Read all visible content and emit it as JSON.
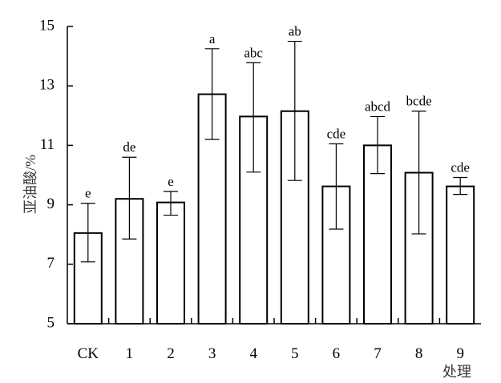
{
  "chart_data": {
    "type": "bar",
    "categories": [
      "CK",
      "1",
      "2",
      "3",
      "4",
      "5",
      "6",
      "7",
      "8",
      "9"
    ],
    "values": [
      8.05,
      9.2,
      9.08,
      12.72,
      11.97,
      12.15,
      9.62,
      11.0,
      10.08,
      9.62
    ],
    "error_bars": [
      {
        "low": 7.08,
        "high": 9.05
      },
      {
        "low": 7.85,
        "high": 10.6
      },
      {
        "low": 8.65,
        "high": 9.45
      },
      {
        "low": 11.2,
        "high": 14.25
      },
      {
        "low": 10.1,
        "high": 13.78
      },
      {
        "low": 9.82,
        "high": 14.5
      },
      {
        "low": 8.18,
        "high": 11.05
      },
      {
        "low": 10.05,
        "high": 11.97
      },
      {
        "low": 8.02,
        "high": 12.15
      },
      {
        "low": 9.35,
        "high": 9.92
      }
    ],
    "significance_labels": [
      "e",
      "de",
      "e",
      "a",
      "abc",
      "ab",
      "cde",
      "abcd",
      "bcde",
      "cde"
    ],
    "ylim": [
      5,
      15
    ],
    "yticks": [
      "5",
      "7",
      "9",
      "11",
      "13",
      "15"
    ],
    "ylabel": "亚油酸/%",
    "xlabel": "处理",
    "title": "",
    "grid": false,
    "bar_fill": "#ffffff",
    "bar_stroke": "#000000"
  }
}
